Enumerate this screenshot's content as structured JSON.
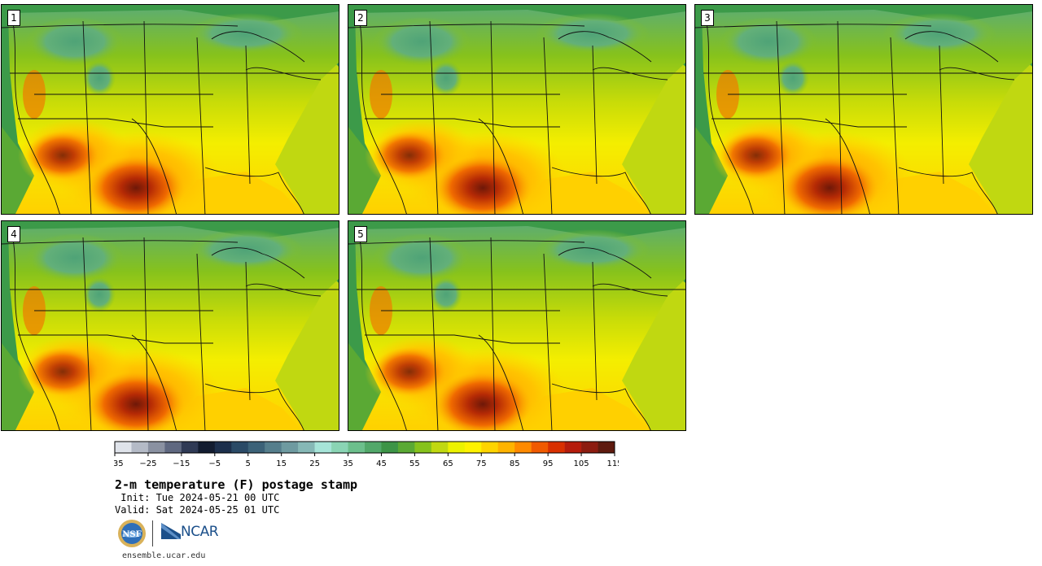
{
  "panels": [
    {
      "label": "1"
    },
    {
      "label": "2"
    },
    {
      "label": "3"
    },
    {
      "label": "4"
    },
    {
      "label": "5"
    }
  ],
  "colorbar": {
    "colors": [
      "#dfe3ea",
      "#b4bac6",
      "#8a91a1",
      "#5f6880",
      "#2f3a55",
      "#121c30",
      "#1c2f4c",
      "#2a4a66",
      "#3c6278",
      "#557e8c",
      "#6e9aa0",
      "#86b8b6",
      "#a6e4d8",
      "#8ad4b4",
      "#6cbf8c",
      "#52a86a",
      "#3d9447",
      "#5aa934",
      "#86c21c",
      "#c0d811",
      "#ecf200",
      "#fff200",
      "#ffd400",
      "#ffb300",
      "#ff8a00",
      "#f05a00",
      "#d93000",
      "#b51c0c",
      "#8c1c10",
      "#5e1a0e"
    ],
    "tick_labels": [
      "−35",
      "−25",
      "−15",
      "−5",
      "5",
      "15",
      "25",
      "35",
      "45",
      "55",
      "65",
      "75",
      "85",
      "95",
      "105",
      "115"
    ]
  },
  "title": "2-m temperature (F) postage stamp",
  "init": " Init: Tue 2024-05-21 00 UTC",
  "valid": "Valid: Sat 2024-05-25 01 UTC",
  "logos": {
    "nsf": "NSF",
    "ncar": "NCAR"
  },
  "url": "ensemble.ucar.edu"
}
